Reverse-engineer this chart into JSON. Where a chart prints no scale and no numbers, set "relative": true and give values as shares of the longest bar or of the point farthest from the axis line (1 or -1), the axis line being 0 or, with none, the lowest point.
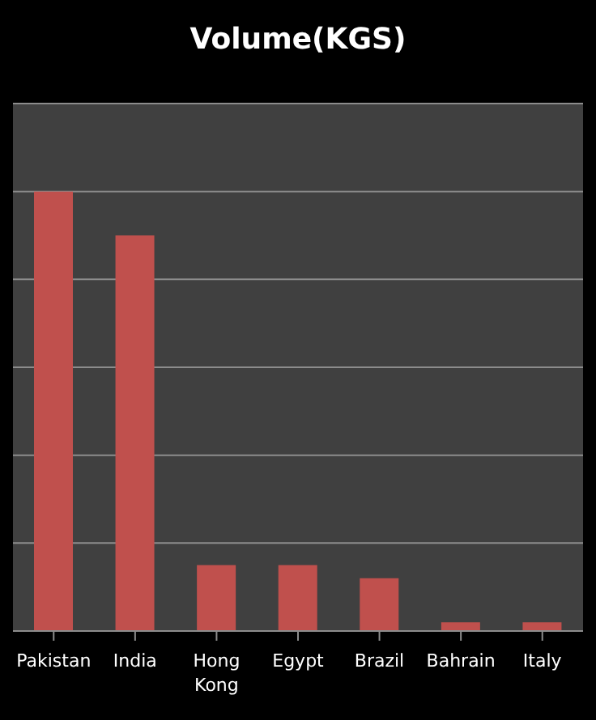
{
  "chart_data": {
    "type": "bar",
    "title": "Volume(KGS)",
    "categories": [
      "Pakistan",
      "India",
      "Hong Kong",
      "Egypt",
      "Brazil",
      "Bahrain",
      "Italy"
    ],
    "values": [
      1,
      0.9,
      0.15,
      0.15,
      0.12,
      0.02,
      0.02
    ],
    "color": "#c0504d",
    "relative": true,
    "grid": "y"
  }
}
